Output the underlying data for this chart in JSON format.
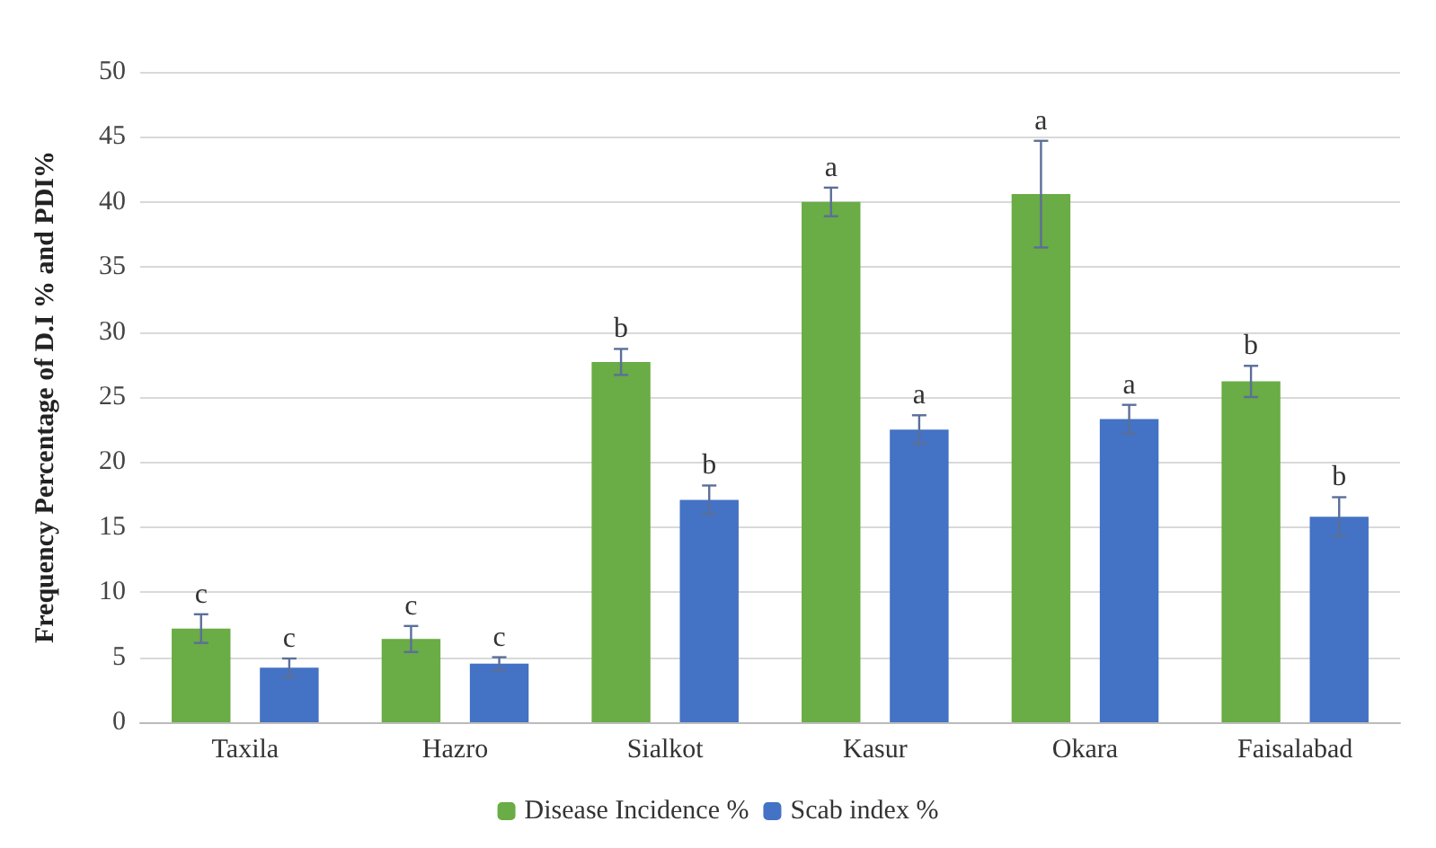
{
  "chart_data": {
    "type": "bar",
    "ylabel": "Frequency Percentage of D.I % and PDI%",
    "categories": [
      "Taxila",
      "Hazro",
      "Sialkot",
      "Kasur",
      "Okara",
      "Faisalabad"
    ],
    "series": [
      {
        "name": "Disease Incidence %",
        "color": "#6aac45",
        "values": [
          7.2,
          6.4,
          27.7,
          40.0,
          40.6,
          26.2
        ],
        "errors": [
          1.1,
          1.0,
          1.0,
          1.1,
          4.1,
          1.2
        ],
        "value_labels": [
          "c",
          "c",
          "b",
          "a",
          "a",
          "b"
        ]
      },
      {
        "name": "Scab index %",
        "color": "#4472c4",
        "values": [
          4.2,
          4.5,
          17.1,
          22.5,
          23.3,
          15.8
        ],
        "errors": [
          0.7,
          0.5,
          1.1,
          1.1,
          1.1,
          1.5
        ],
        "value_labels": [
          "c",
          "c",
          "b",
          "a",
          "a",
          "b"
        ]
      }
    ],
    "ylim": [
      0,
      50
    ],
    "yticks": [
      0,
      5,
      10,
      15,
      20,
      25,
      30,
      35,
      40,
      45,
      50
    ],
    "grid": "y",
    "legend": "bottom"
  }
}
